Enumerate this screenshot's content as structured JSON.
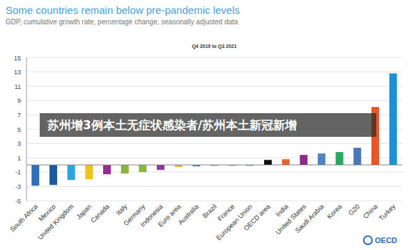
{
  "chart_data": {
    "type": "bar",
    "title": "Some countries remain below pre-pandemic levels",
    "subtitle": "GDP, cumulative growth rate, percentage change, seasonally adjusted data",
    "annotations": [
      "Q4 2019 to Q3 2021",
      "苏州增3例本土无症状感染者/苏州本土新冠新增",
      "OECD"
    ],
    "categories": [
      "South Africa",
      "Mexico",
      "United Kingdom",
      "Japan",
      "Canada",
      "Italy",
      "Germany",
      "Indonesia",
      "Euro area",
      "Australia",
      "Brazil",
      "France",
      "European Union",
      "OECD area",
      "India",
      "United States",
      "Saudi Arabia",
      "Korea",
      "G20",
      "China",
      "Turkey"
    ],
    "values": [
      -2.9,
      -2.8,
      -2.1,
      -2.0,
      -1.3,
      -1.2,
      -1.0,
      -0.7,
      -0.3,
      -0.2,
      -0.1,
      -0.1,
      -0.1,
      0.7,
      0.8,
      1.4,
      1.6,
      1.8,
      2.4,
      8.1,
      12.8
    ],
    "colors": [
      "#2f6fb5",
      "#1f5a9e",
      "#2aa6de",
      "#f2c21b",
      "#9b2c8f",
      "#8ab43e",
      "#8ab43e",
      "#8c3a98",
      "#e6b33a",
      "#4a78b6",
      "#3a74b4",
      "#4a78b6",
      "#3f6cae",
      "#111111",
      "#e8662a",
      "#8e2a8a",
      "#4e86c4",
      "#2aa864",
      "#4a78b6",
      "#e8562a",
      "#1e90d6"
    ],
    "ylim": [
      -5,
      15
    ],
    "yticks": [
      -5,
      -3,
      -1,
      1,
      3,
      5,
      7,
      9,
      11,
      13,
      15
    ],
    "grid": true
  }
}
